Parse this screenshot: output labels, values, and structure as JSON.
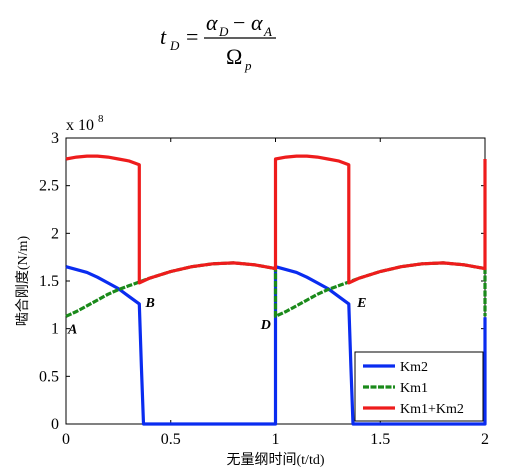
{
  "formula": {
    "lhs": "t",
    "lhs_sub": "D",
    "equals": "=",
    "num_a": "α",
    "num_a_sub": "D",
    "minus": "−",
    "num_b": "α",
    "num_b_sub": "A",
    "den": "Ω",
    "den_sub": "p"
  },
  "chart_data": {
    "type": "line",
    "title": "",
    "xlabel": "无量纲时间(t/td)",
    "ylabel": "啮合刚度(N/m)",
    "scale_label": "x 10",
    "scale_exp": "8",
    "xlim": [
      0,
      2
    ],
    "ylim": [
      0,
      3
    ],
    "xticks": [
      0,
      0.5,
      1,
      1.5,
      2
    ],
    "xtick_labels": [
      "0",
      "0.5",
      "1",
      "1.5",
      "2"
    ],
    "yticks": [
      0,
      0.5,
      1,
      1.5,
      2,
      2.5,
      3
    ],
    "ytick_labels": [
      "0",
      "0.5",
      "1",
      "1.5",
      "2",
      "2.5",
      "3"
    ],
    "grid": false,
    "legend_position": "bottom-right",
    "series": [
      {
        "name": "Km2",
        "color": "#0a2cf0",
        "style": "solid",
        "x": [
          0,
          0.05,
          0.1,
          0.15,
          0.2,
          0.25,
          0.3,
          0.35,
          0.35,
          0.36,
          0.37,
          1.0,
          1.0,
          1.05,
          1.1,
          1.15,
          1.2,
          1.25,
          1.3,
          1.35,
          1.35,
          1.36,
          1.37,
          2.0,
          2.0
        ],
        "y": [
          1.65,
          1.62,
          1.59,
          1.54,
          1.48,
          1.42,
          1.34,
          1.26,
          1.26,
          0.6,
          0.0,
          0.0,
          1.65,
          1.62,
          1.59,
          1.54,
          1.48,
          1.42,
          1.34,
          1.26,
          1.26,
          0.6,
          0.0,
          0.0,
          1.12
        ]
      },
      {
        "name": "Km1",
        "color": "#1a8a1a",
        "style": "dashed",
        "x": [
          0,
          0.05,
          0.1,
          0.15,
          0.2,
          0.25,
          0.3,
          0.35,
          0.4,
          0.5,
          0.6,
          0.7,
          0.8,
          0.9,
          1.0,
          1.0,
          1.05,
          1.1,
          1.15,
          1.2,
          1.25,
          1.3,
          1.35,
          1.4,
          1.5,
          1.6,
          1.7,
          1.8,
          1.9,
          2.0,
          2.0
        ],
        "y": [
          1.13,
          1.18,
          1.24,
          1.3,
          1.36,
          1.41,
          1.45,
          1.49,
          1.53,
          1.6,
          1.65,
          1.68,
          1.69,
          1.67,
          1.63,
          1.13,
          1.18,
          1.24,
          1.3,
          1.36,
          1.41,
          1.45,
          1.49,
          1.53,
          1.6,
          1.65,
          1.68,
          1.69,
          1.67,
          1.63,
          1.13
        ]
      },
      {
        "name": "Km1+Km2",
        "color": "#ee1c1c",
        "style": "solid",
        "x": [
          0,
          0.05,
          0.1,
          0.15,
          0.2,
          0.25,
          0.3,
          0.35,
          0.35,
          0.4,
          0.5,
          0.6,
          0.7,
          0.8,
          0.9,
          1.0,
          1.0,
          1.05,
          1.1,
          1.15,
          1.2,
          1.25,
          1.3,
          1.35,
          1.35,
          1.4,
          1.5,
          1.6,
          1.7,
          1.8,
          1.9,
          2.0,
          2.0
        ],
        "y": [
          2.78,
          2.8,
          2.81,
          2.81,
          2.8,
          2.78,
          2.76,
          2.72,
          1.48,
          1.53,
          1.6,
          1.65,
          1.68,
          1.69,
          1.67,
          1.63,
          2.78,
          2.8,
          2.81,
          2.81,
          2.8,
          2.78,
          2.76,
          2.72,
          1.48,
          1.53,
          1.6,
          1.65,
          1.68,
          1.69,
          1.67,
          1.63,
          2.78
        ]
      }
    ],
    "annotations": [
      {
        "text": "A",
        "x": 0.0,
        "y": 1.0
      },
      {
        "text": "B",
        "x": 0.37,
        "y": 1.28
      },
      {
        "text": "D",
        "x": 0.92,
        "y": 1.05
      },
      {
        "text": "E",
        "x": 1.38,
        "y": 1.28
      }
    ]
  }
}
